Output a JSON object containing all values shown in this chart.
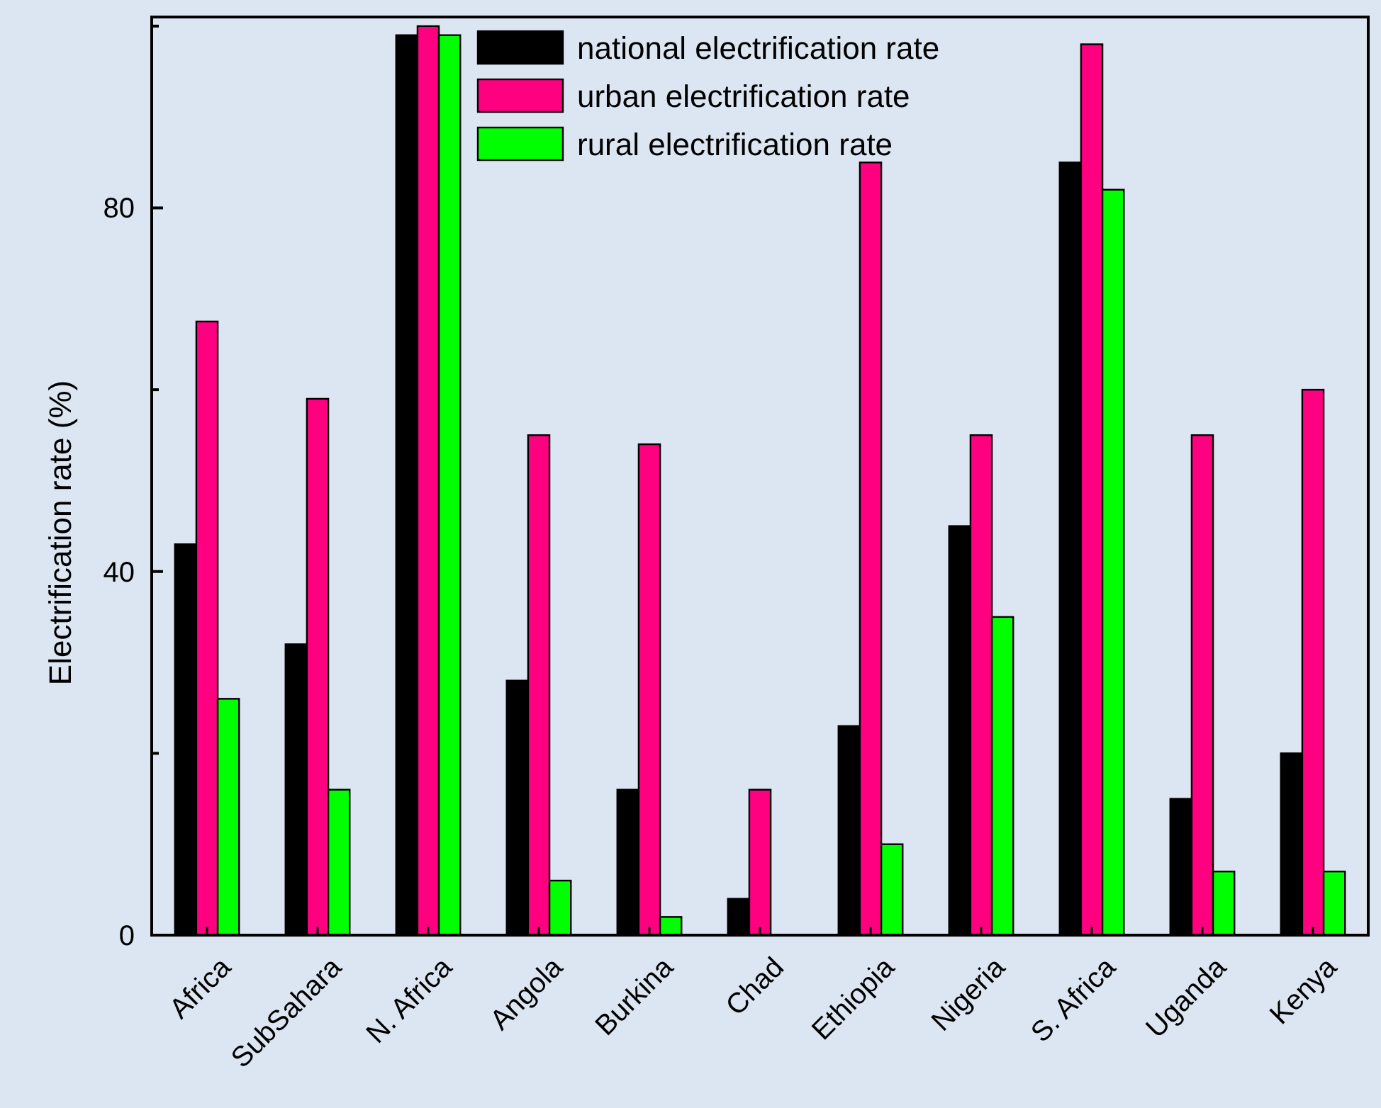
{
  "chart_data": {
    "type": "bar",
    "ylabel": "Electrification rate (%)",
    "categories": [
      "Africa",
      "SubSahara",
      "N. Africa",
      "Angola",
      "Burkina",
      "Chad",
      "Ethiopia",
      "Nigeria",
      "S. Africa",
      "Uganda",
      "Kenya"
    ],
    "series": [
      {
        "name": "national electrification rate",
        "color": "#000000",
        "values": [
          43,
          32,
          99,
          28,
          16,
          4,
          23,
          45,
          85,
          15,
          20
        ]
      },
      {
        "name": "urban electrification rate",
        "color": "#ff0080",
        "values": [
          67.5,
          59,
          100,
          55,
          54,
          16,
          85,
          55,
          98,
          55,
          60
        ]
      },
      {
        "name": "rural electrification rate",
        "color": "#00ff00",
        "values": [
          26,
          16,
          99,
          6,
          2,
          null,
          10,
          35,
          82,
          7,
          7
        ]
      }
    ],
    "ylim": [
      0,
      101
    ],
    "yticks": [
      0,
      {
        "value": 20,
        "label": null
      },
      40,
      {
        "value": 60,
        "label": null
      },
      80,
      {
        "value": 100,
        "label": null
      }
    ],
    "legend": "top",
    "grid": false
  }
}
